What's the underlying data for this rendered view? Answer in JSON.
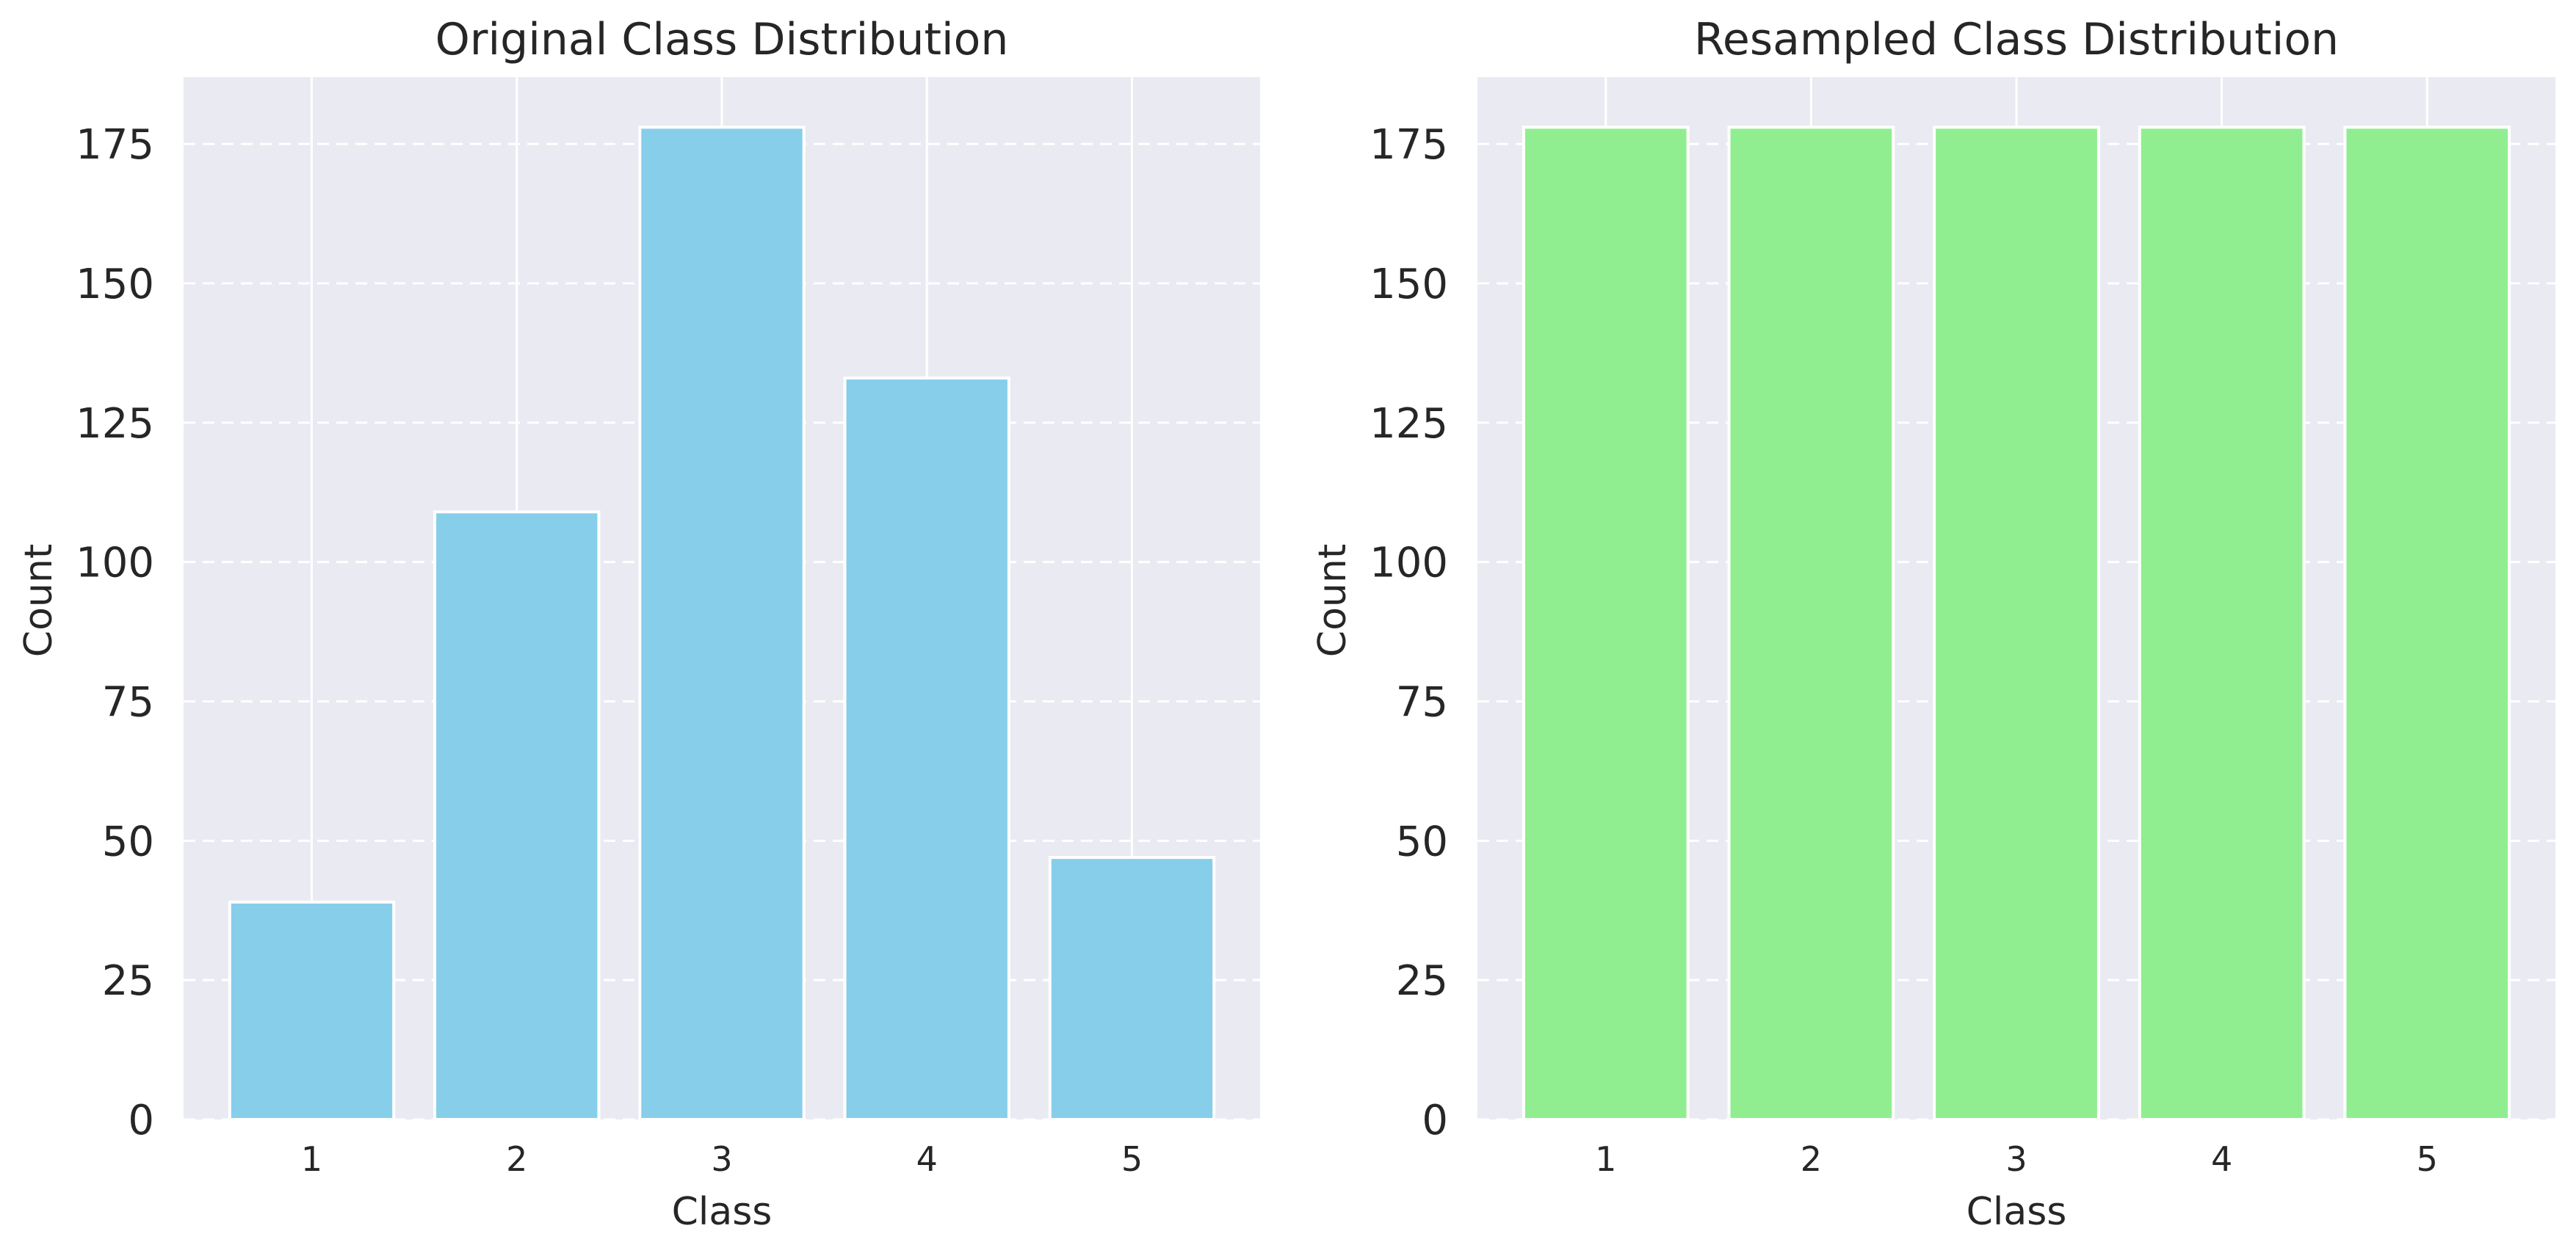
{
  "chart_data": [
    {
      "type": "bar",
      "title": "Original Class Distribution",
      "xlabel": "Class",
      "ylabel": "Count",
      "categories": [
        "1",
        "2",
        "3",
        "4",
        "5"
      ],
      "values": [
        39,
        109,
        178,
        133,
        47
      ],
      "ylim": [
        0,
        187
      ],
      "yticks": [
        0,
        25,
        50,
        75,
        100,
        125,
        150,
        175
      ],
      "color": "#87CEEB",
      "grid": true
    },
    {
      "type": "bar",
      "title": "Resampled Class Distribution",
      "xlabel": "Class",
      "ylabel": "Count",
      "categories": [
        "1",
        "2",
        "3",
        "4",
        "5"
      ],
      "values": [
        178,
        178,
        178,
        178,
        178
      ],
      "ylim": [
        0,
        187
      ],
      "yticks": [
        0,
        25,
        50,
        75,
        100,
        125,
        150,
        175
      ],
      "color": "#90EE90",
      "grid": true
    }
  ],
  "style": {
    "plot_background": "#EAEAF2",
    "gridline_color": "#FFFFFF"
  }
}
